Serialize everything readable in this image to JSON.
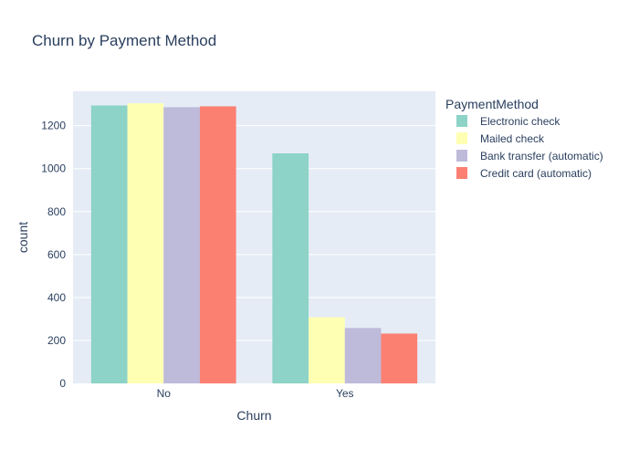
{
  "chart_data": {
    "type": "bar",
    "title": "Churn by Payment Method",
    "xlabel": "Churn",
    "ylabel": "count",
    "categories": [
      "No",
      "Yes"
    ],
    "ylim": [
      0,
      1360
    ],
    "yticks": [
      0,
      200,
      400,
      600,
      800,
      1000,
      1200
    ],
    "grid": true,
    "legend_title": "PaymentMethod",
    "legend_position": "right",
    "series": [
      {
        "name": "Electronic check",
        "color": "#8dd3c7",
        "values": [
          1294,
          1071
        ]
      },
      {
        "name": "Mailed check",
        "color": "#ffffb3",
        "values": [
          1304,
          308
        ]
      },
      {
        "name": "Bank transfer (automatic)",
        "color": "#bebada",
        "values": [
          1286,
          258
        ]
      },
      {
        "name": "Credit card (automatic)",
        "color": "#fb8072",
        "values": [
          1290,
          232
        ]
      }
    ]
  },
  "colors": {
    "plot_background": "#e5ecf6",
    "gridline": "#ffffff",
    "text": "#2a3f5f"
  }
}
